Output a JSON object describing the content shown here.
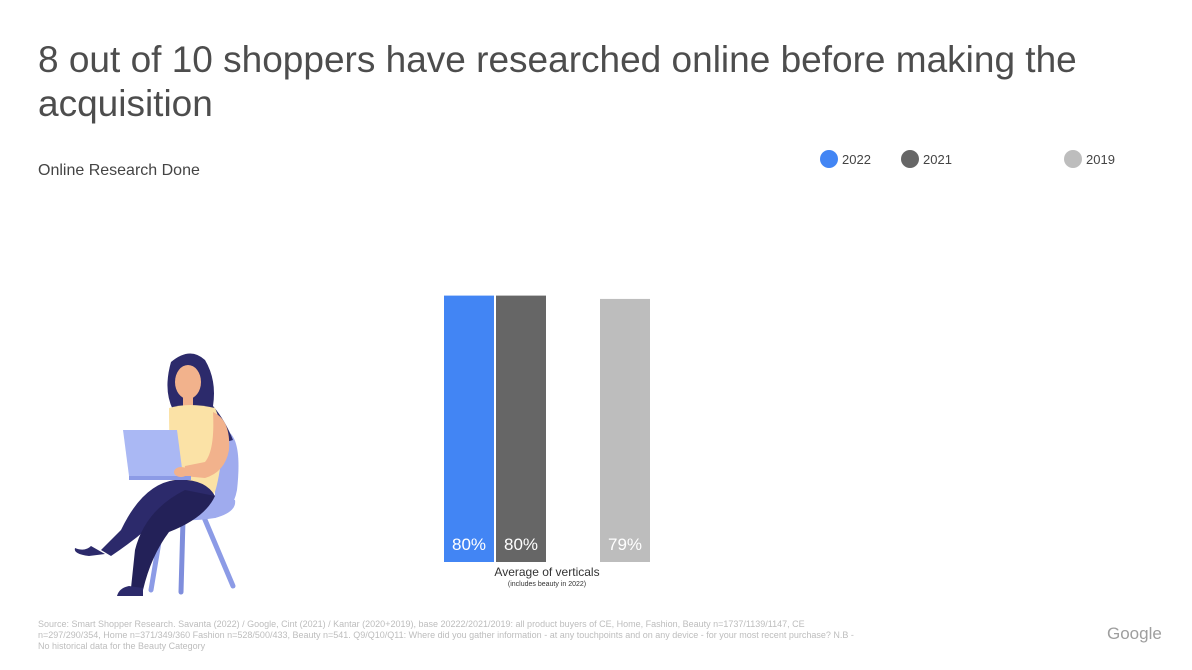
{
  "title": "8 out of 10 shoppers have researched online before making the acquisition",
  "subtitle": "Online Research Done",
  "legend": [
    {
      "label": "2022",
      "color": "#4285f4"
    },
    {
      "label": "2021",
      "color": "#666666"
    },
    {
      "label": "2019",
      "color": "#bdbdbd"
    }
  ],
  "chart_data": {
    "type": "bar",
    "categories": [
      "Average of verticals"
    ],
    "category_note": "(includes beauty in 2022)",
    "series": [
      {
        "name": "2022",
        "values": [
          80
        ],
        "label": "80%",
        "color": "#4285f4"
      },
      {
        "name": "2021",
        "values": [
          80
        ],
        "label": "80%",
        "color": "#666666"
      },
      {
        "name": "2019",
        "values": [
          79
        ],
        "label": "79%",
        "color": "#bdbdbd"
      }
    ],
    "ylim": [
      0,
      100
    ],
    "grid": false,
    "legend_position": "top-right"
  },
  "footnote": "Source: Smart Shopper Research. Savanta (2022) / Google, Cint (2021) / Kantar (2020+2019), base 20222/2021/2019: all product buyers of CE, Home, Fashion, Beauty n=1737/1139/1147, CE n=297/290/354, Home n=371/349/360 Fashion n=528/500/433, Beauty n=541. Q9/Q10/Q11: Where did you gather information - at any touchpoints and on any device - for your most recent purchase? N.B - No historical data for the Beauty Category",
  "logo": "Google"
}
